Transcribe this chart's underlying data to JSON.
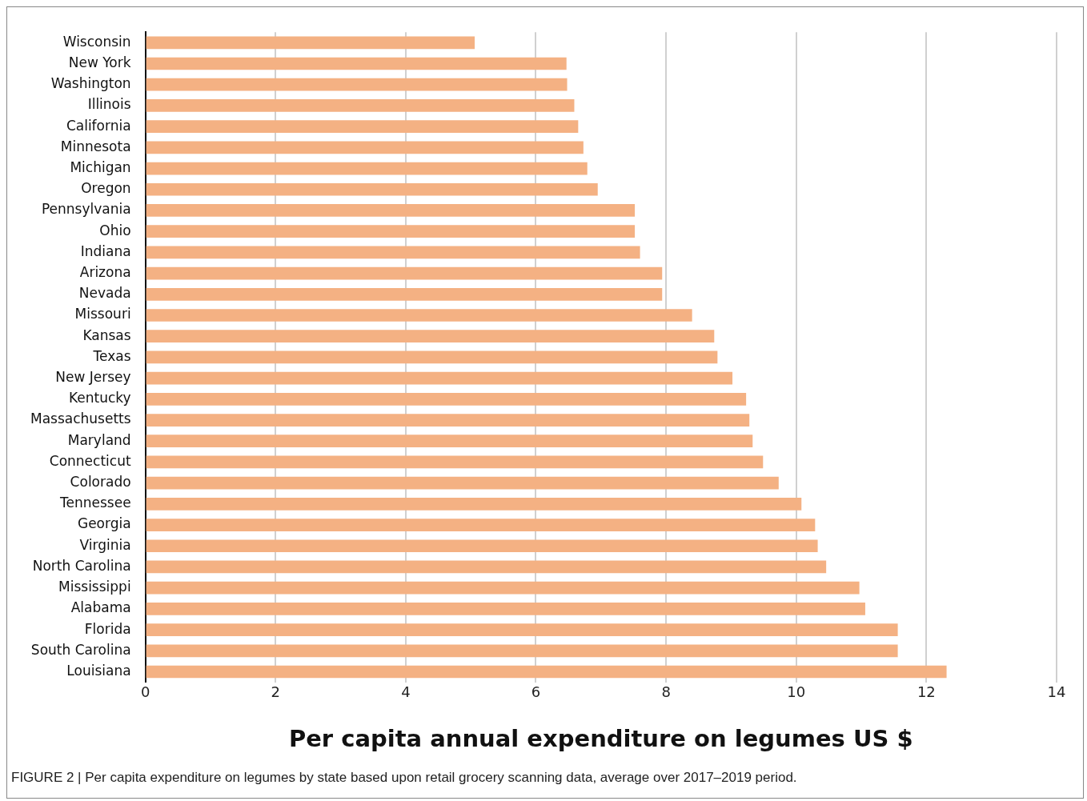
{
  "chart_data": {
    "type": "bar",
    "orientation": "horizontal",
    "xlabel": "Per capita annual expenditure on legumes US $",
    "categories": [
      "Wisconsin",
      "New York",
      "Washington",
      "Illinois",
      "California",
      "Minnesota",
      "Michigan",
      "Oregon",
      "Pennsylvania",
      "Ohio",
      "Indiana",
      "Arizona",
      "Nevada",
      "Missouri",
      "Kansas",
      "Texas",
      "New Jersey",
      "Kentucky",
      "Massachusetts",
      "Maryland",
      "Connecticut",
      "Colorado",
      "Tennessee",
      "Georgia",
      "Virginia",
      "North Carolina",
      "Mississippi",
      "Alabama",
      "Florida",
      "South Carolina",
      "Louisiana"
    ],
    "values": [
      5.06,
      6.47,
      6.48,
      6.59,
      6.65,
      6.73,
      6.79,
      6.95,
      7.52,
      7.52,
      7.6,
      7.94,
      7.94,
      8.4,
      8.74,
      8.79,
      9.02,
      9.23,
      9.28,
      9.33,
      9.49,
      9.73,
      10.08,
      10.29,
      10.33,
      10.46,
      10.97,
      11.06,
      11.56,
      11.56,
      12.31
    ],
    "color": "#f4b183",
    "xlim": [
      0,
      14
    ],
    "xticks": [
      0,
      2,
      4,
      6,
      8,
      10,
      12,
      14
    ],
    "grid": "x",
    "legend": false,
    "annotations": [
      "FIGURE 2 | Per capita expenditure on legumes by state based upon retail grocery scanning data, average over 2017–2019 period."
    ]
  }
}
